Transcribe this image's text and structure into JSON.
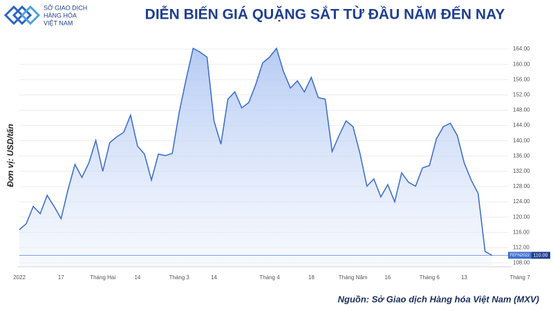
{
  "logo": {
    "lines": [
      "SỞ GIAO DỊCH",
      "HÀNG HÓA",
      "VIỆT NAM"
    ]
  },
  "chart_data": {
    "type": "line",
    "title": "DIỄN BIẾN GIÁ QUẶNG SẮT TỪ ĐẦU NĂM ĐẾN NAY",
    "y_label": "Đơn vị: USD/tấn",
    "source": "Nguồn: Sở Giao dịch Hàng hóa Việt Nam (MXV)",
    "categories": [
      "2022",
      null,
      null,
      null,
      null,
      null,
      "17",
      null,
      null,
      null,
      null,
      null,
      "Tháng Hai",
      null,
      null,
      null,
      null,
      "14",
      null,
      null,
      null,
      null,
      null,
      "Tháng 3",
      null,
      null,
      null,
      null,
      "14",
      null,
      null,
      null,
      null,
      null,
      null,
      null,
      "Tháng 4",
      null,
      null,
      null,
      null,
      null,
      "18",
      null,
      null,
      null,
      null,
      null,
      "Tháng Năm",
      null,
      null,
      null,
      null,
      "16",
      null,
      null,
      null,
      null,
      null,
      "Tháng 6",
      null,
      null,
      null,
      null,
      "13",
      null,
      null,
      null,
      null,
      null,
      null,
      null,
      "Tháng 7"
    ],
    "series": [
      {
        "name": "FEFN2022",
        "color": "#3f6fce",
        "values": [
          116.7,
          118.3,
          122.8,
          120.9,
          125.7,
          122.8,
          119.6,
          127.2,
          133.8,
          130.4,
          134.2,
          140.1,
          132,
          139.5,
          141,
          142.2,
          146.7,
          138.6,
          136.5,
          129.7,
          136.5,
          136.1,
          136.7,
          147.5,
          156.2,
          164.2,
          163.2,
          161.9,
          145.2,
          139.1,
          150.9,
          152.8,
          148.6,
          150,
          154.7,
          160.4,
          161.9,
          164.2,
          158.1,
          153.8,
          155.7,
          152.8,
          156.6,
          151.3,
          150.9,
          137.2,
          141.4,
          145.2,
          143.7,
          136.7,
          128.1,
          130,
          125.3,
          128.5,
          124,
          131.6,
          129.1,
          128.1,
          132.9,
          133.5,
          140.5,
          143.7,
          144.6,
          141.4,
          134.2,
          129.7,
          126.2,
          111,
          110,
          null,
          null,
          null,
          null
        ]
      }
    ],
    "last_value": {
      "value": 110,
      "label": "110.00"
    },
    "ylim": [
      107,
      166
    ],
    "yticks": [
      {
        "value": 108,
        "label": "108.00"
      },
      {
        "value": 112,
        "label": "112.00"
      },
      {
        "value": 116,
        "label": "116.00"
      },
      {
        "value": 120,
        "label": "120.00"
      },
      {
        "value": 124,
        "label": "124.00"
      },
      {
        "value": 128,
        "label": "128.00"
      },
      {
        "value": 132,
        "label": "132.00"
      },
      {
        "value": 136,
        "label": "136.00"
      },
      {
        "value": 140,
        "label": "140.00"
      },
      {
        "value": 144,
        "label": "144.00"
      },
      {
        "value": 148,
        "label": "148.00"
      },
      {
        "value": 152,
        "label": "152.00"
      },
      {
        "value": 156,
        "label": "156.00"
      },
      {
        "value": 160,
        "label": "160.00"
      },
      {
        "value": 164,
        "label": "164.00"
      }
    ],
    "grid": true
  }
}
